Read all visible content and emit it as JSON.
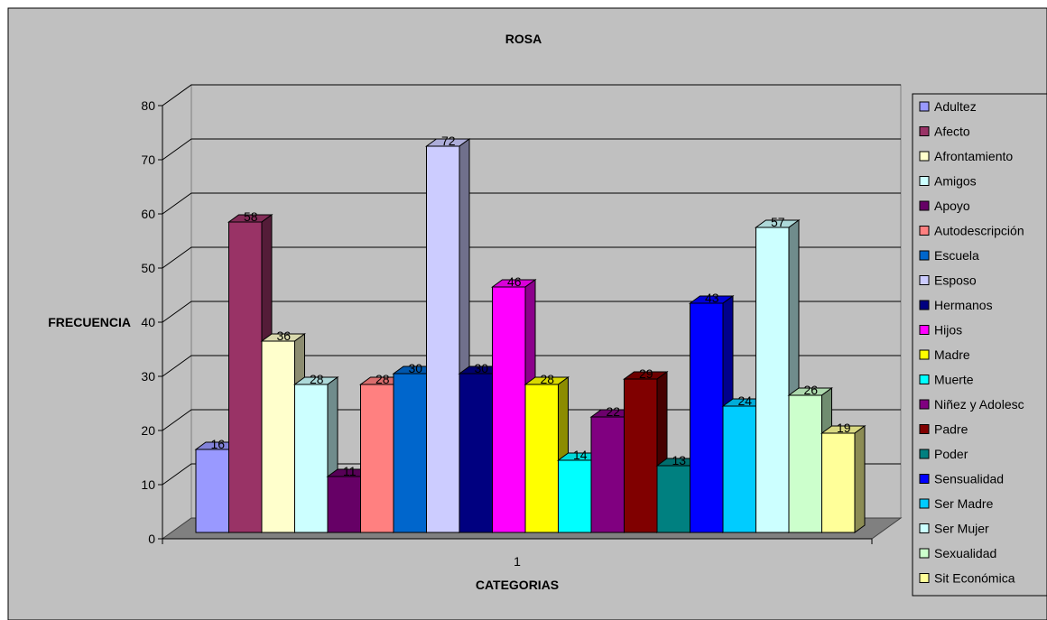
{
  "chart_data": {
    "type": "bar",
    "title": "ROSA",
    "xlabel": "CATEGORIAS",
    "ylabel": "FRECUENCIA",
    "categories": [
      "1"
    ],
    "ylim": [
      0,
      80
    ],
    "yticks": [
      0,
      10,
      20,
      30,
      40,
      50,
      60,
      70,
      80
    ],
    "grid": true,
    "legend": "right",
    "series": [
      {
        "name": "Adultez",
        "values": [
          16
        ],
        "color": "#9999FF"
      },
      {
        "name": "Afecto",
        "values": [
          58
        ],
        "color": "#993366"
      },
      {
        "name": "Afrontamiento",
        "values": [
          36
        ],
        "color": "#FFFFCC"
      },
      {
        "name": "Amigos",
        "values": [
          28
        ],
        "color": "#CCFFFF"
      },
      {
        "name": "Apoyo",
        "values": [
          11
        ],
        "color": "#660066"
      },
      {
        "name": "Autodescripción",
        "values": [
          28
        ],
        "color": "#FF8080"
      },
      {
        "name": "Escuela",
        "values": [
          30
        ],
        "color": "#0066CC"
      },
      {
        "name": "Esposo",
        "values": [
          72
        ],
        "color": "#CCCCFF"
      },
      {
        "name": "Hermanos",
        "values": [
          30
        ],
        "color": "#000080"
      },
      {
        "name": "Hijos",
        "values": [
          46
        ],
        "color": "#FF00FF"
      },
      {
        "name": "Madre",
        "values": [
          28
        ],
        "color": "#FFFF00"
      },
      {
        "name": "Muerte",
        "values": [
          14
        ],
        "color": "#00FFFF"
      },
      {
        "name": "Niñez y Adolesc",
        "values": [
          22
        ],
        "color": "#800080"
      },
      {
        "name": "Padre",
        "values": [
          29
        ],
        "color": "#800000"
      },
      {
        "name": "Poder",
        "values": [
          13
        ],
        "color": "#008080"
      },
      {
        "name": "Sensualidad",
        "values": [
          43
        ],
        "color": "#0000FF"
      },
      {
        "name": "Ser Madre",
        "values": [
          24
        ],
        "color": "#00CCFF"
      },
      {
        "name": "Ser Mujer",
        "values": [
          57
        ],
        "color": "#CCFFFF"
      },
      {
        "name": "Sexualidad",
        "values": [
          26
        ],
        "color": "#CCFFCC"
      },
      {
        "name": "Sit Económica",
        "values": [
          19
        ],
        "color": "#FFFF99"
      }
    ]
  }
}
